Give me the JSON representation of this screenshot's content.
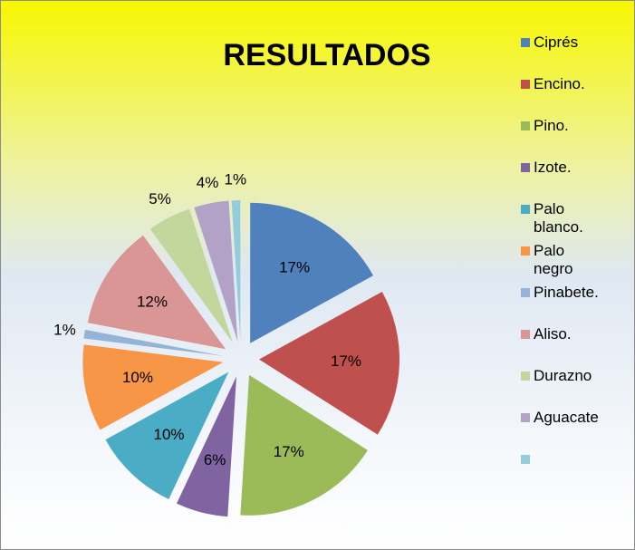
{
  "chart_data": {
    "type": "pie",
    "title": "RESULTADOS",
    "categories": [
      "Ciprés",
      "Encino.",
      "Pino.",
      "Izote.",
      "Palo blanco.",
      "Palo negro",
      "Pinabete.",
      "Aliso.",
      "Durazno",
      "Aguacate",
      null
    ],
    "values": [
      17,
      17,
      17,
      6,
      10,
      10,
      1,
      12,
      5,
      4,
      1
    ],
    "value_labels": [
      "17%",
      "17%",
      "17%",
      "6%",
      "10%",
      "10%",
      "1%",
      "12%",
      "5%",
      "4%",
      "1%"
    ],
    "colors": [
      "#4F81BD",
      "#C0504D",
      "#9BBB59",
      "#8064A2",
      "#4BACC6",
      "#F79646",
      "#95B3D7",
      "#D99694",
      "#C3D69B",
      "#B3A2C7",
      "#93CDDD"
    ],
    "legend": "right"
  }
}
